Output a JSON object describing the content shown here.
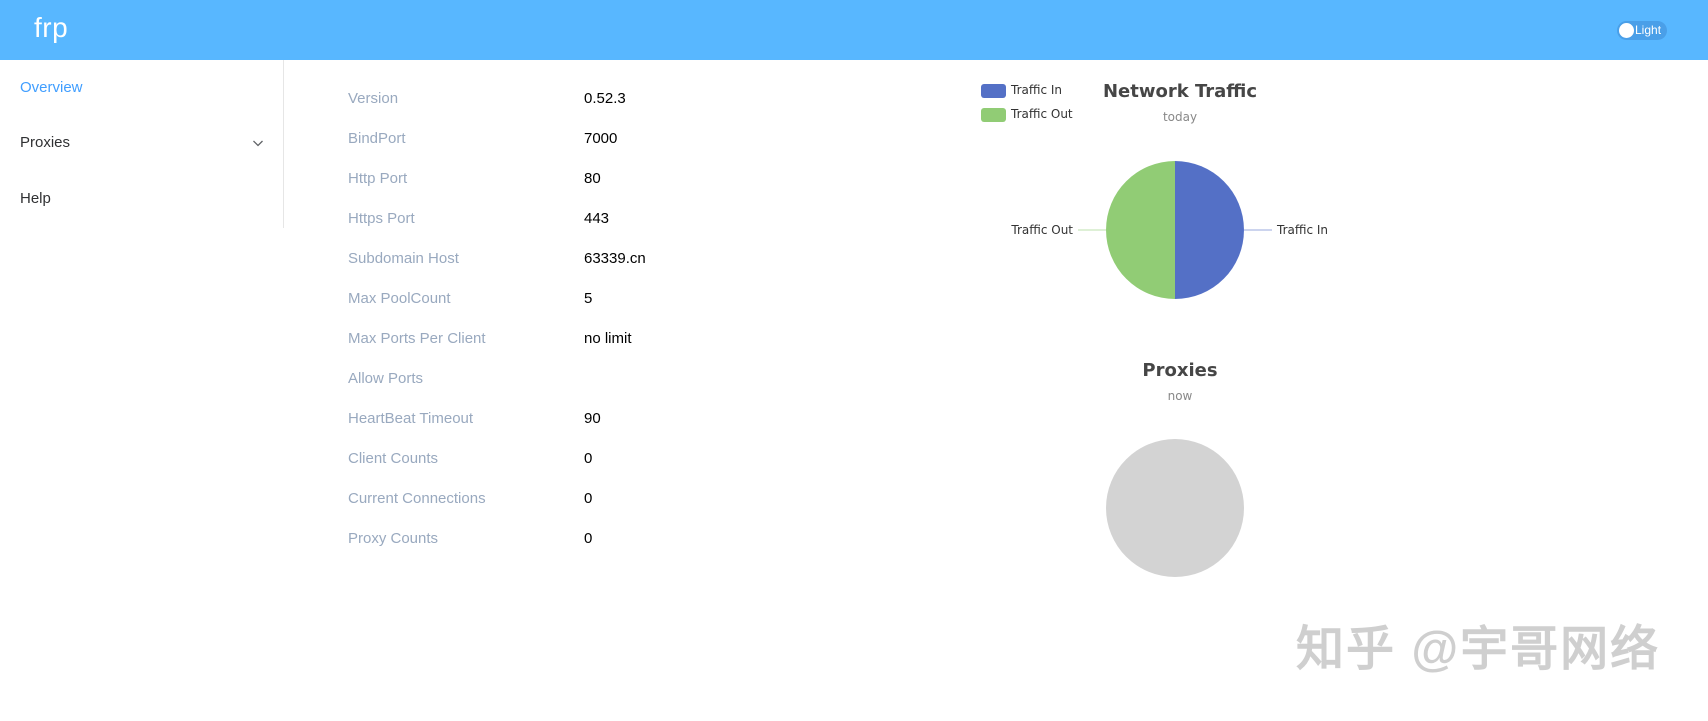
{
  "header": {
    "logo": "frp",
    "theme_toggle_label": "Light",
    "background_color": "#58b7ff"
  },
  "sidebar": {
    "items": [
      {
        "label": "Overview",
        "active": true
      },
      {
        "label": "Proxies",
        "has_submenu": true,
        "icon": "chevron-down-icon"
      },
      {
        "label": "Help"
      }
    ]
  },
  "server_info": [
    {
      "key": "Version",
      "value": "0.52.3"
    },
    {
      "key": "BindPort",
      "value": "7000"
    },
    {
      "key": "Http Port",
      "value": "80"
    },
    {
      "key": "Https Port",
      "value": "443"
    },
    {
      "key": "Subdomain Host",
      "value": "63339.cn"
    },
    {
      "key": "Max PoolCount",
      "value": "5"
    },
    {
      "key": "Max Ports Per Client",
      "value": "no limit"
    },
    {
      "key": "Allow Ports",
      "value": ""
    },
    {
      "key": "HeartBeat Timeout",
      "value": "90"
    },
    {
      "key": "Client Counts",
      "value": "0"
    },
    {
      "key": "Current Connections",
      "value": "0"
    },
    {
      "key": "Proxy Counts",
      "value": "0"
    }
  ],
  "chart_data": [
    {
      "type": "pie",
      "title": "Network Traffic",
      "subtitle": "today",
      "legend_position": "top-left",
      "slices": [
        {
          "name": "Traffic In",
          "value": 50,
          "color": "#5470c6"
        },
        {
          "name": "Traffic Out",
          "value": 50,
          "color": "#91cc75"
        }
      ]
    },
    {
      "type": "pie",
      "title": "Proxies",
      "subtitle": "now",
      "empty": true,
      "empty_color": "#d3d3d3",
      "slices": []
    }
  ],
  "watermark": "知乎 @宇哥网络"
}
